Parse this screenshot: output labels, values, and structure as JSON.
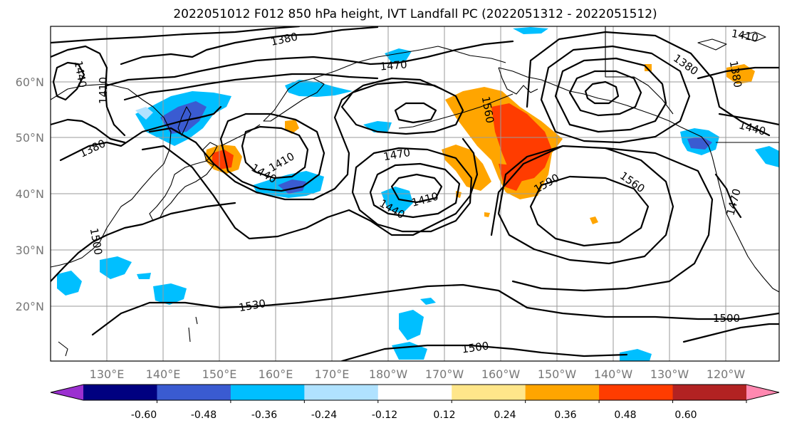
{
  "title": "2022051012 F012 850 hPa height, IVT Landfall PC (2022051312 - 2022051512)",
  "lat_labels": [
    "60°N",
    "50°N",
    "40°N",
    "30°N",
    "20°N"
  ],
  "lon_labels": [
    "130°E",
    "140°E",
    "150°E",
    "160°E",
    "170°E",
    "180°W",
    "170°W",
    "160°W",
    "150°W",
    "140°W",
    "130°W",
    "120°W"
  ],
  "height_contour_labels": [
    "1380",
    "1410",
    "1440",
    "1380",
    "1410",
    "1440",
    "1500",
    "1530",
    "1470",
    "1470",
    "1410",
    "1440",
    "1560",
    "1590",
    "1560",
    "1380",
    "1380",
    "1410",
    "1440",
    "1470",
    "1500",
    "1500"
  ],
  "colorbar": {
    "ticks": [
      "-0.60",
      "-0.48",
      "-0.36",
      "-0.24",
      "-0.12",
      "0.12",
      "0.24",
      "0.36",
      "0.48",
      "0.60"
    ],
    "colors": [
      "#9b30d0",
      "#000080",
      "#3a5bd1",
      "#00bfff",
      "#b0e2ff",
      "#ffffff",
      "#ffe68a",
      "#ffa500",
      "#ff3c00",
      "#b22222",
      "#ff88b0"
    ]
  },
  "colors": {
    "contour": "#000000",
    "grid": "#9a9a9a",
    "label": "#777777"
  }
}
